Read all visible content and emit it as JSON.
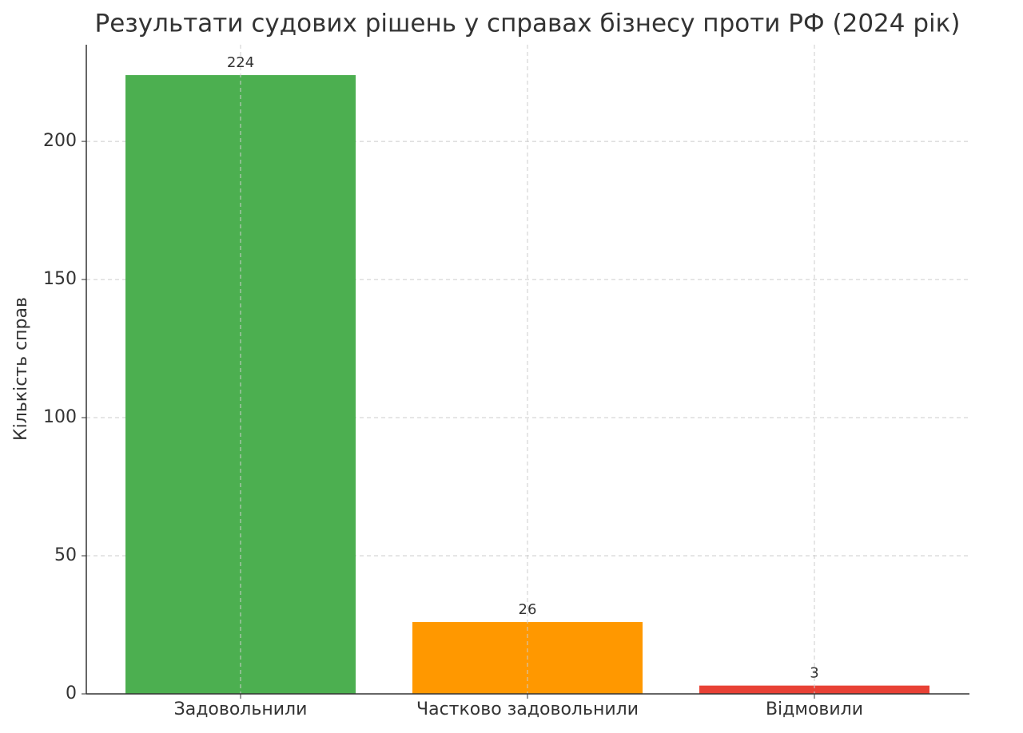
{
  "chart_data": {
    "type": "bar",
    "title": "Результати судових рішень у справах бізнесу проти РФ (2024 рік)",
    "ylabel": "Кількість справ",
    "categories": [
      "Задовольнили",
      "Частково задовольнили",
      "Відмовили"
    ],
    "values": [
      224,
      26,
      3
    ],
    "colors": [
      "#4caf50",
      "#ff9800",
      "#e84135"
    ],
    "ylim": [
      0,
      235
    ],
    "yticks": [
      0,
      50,
      100,
      150,
      200
    ],
    "grid": true,
    "value_labels_shown": true
  }
}
